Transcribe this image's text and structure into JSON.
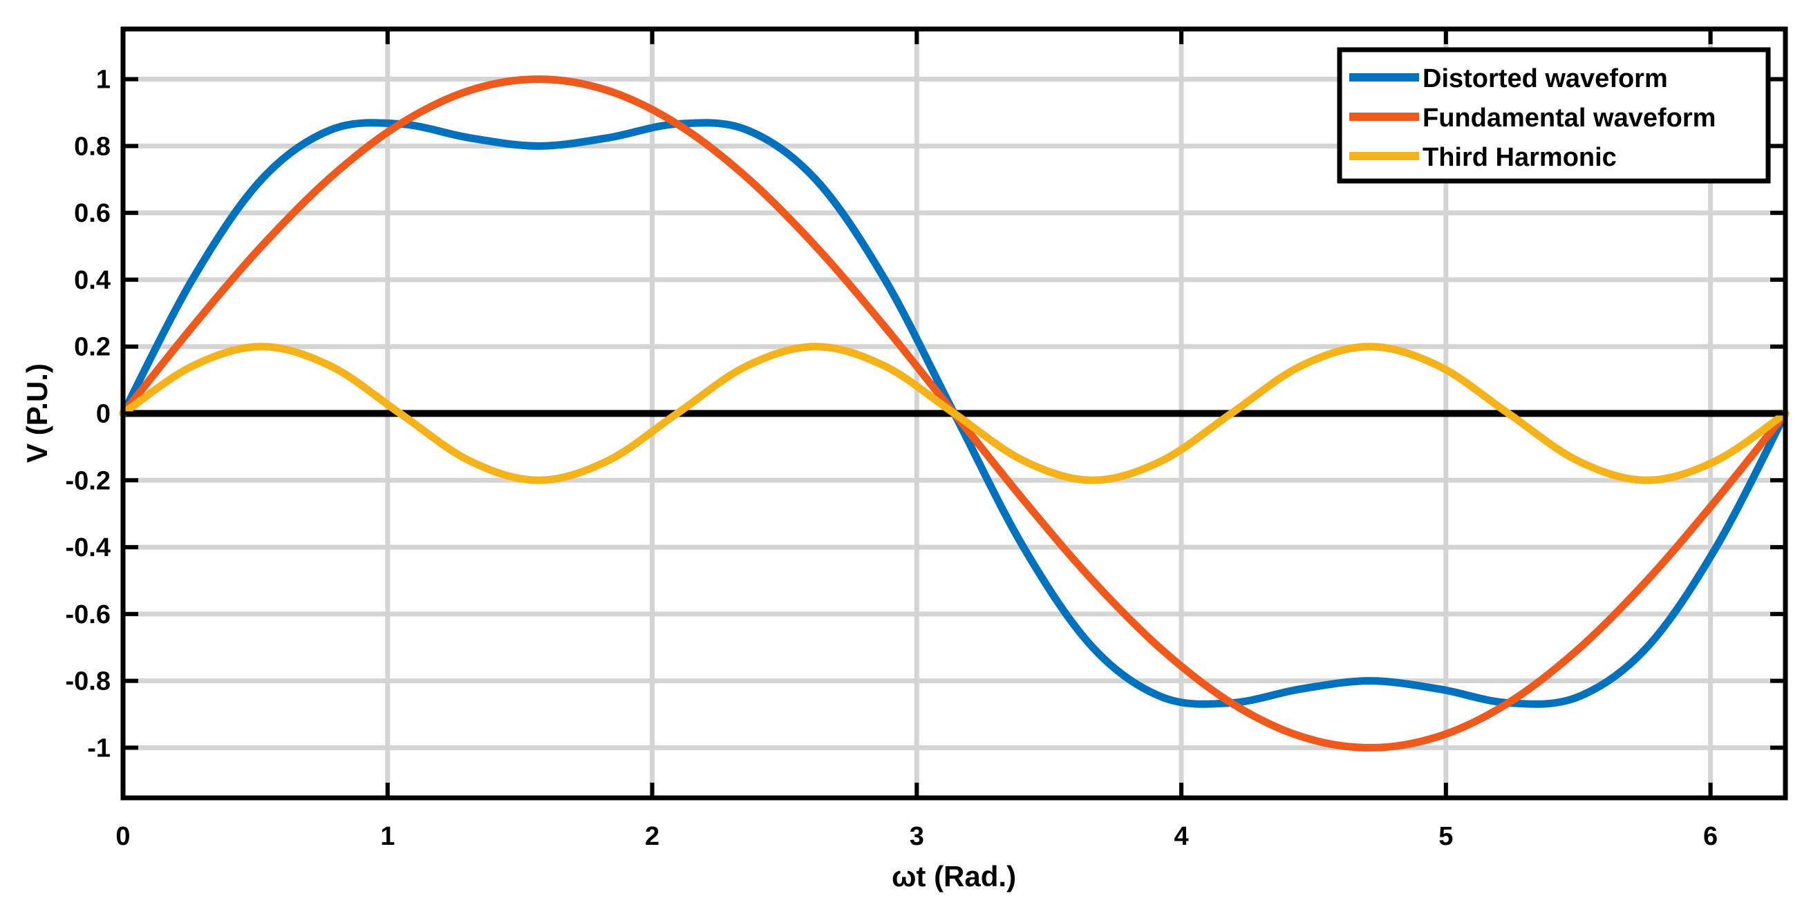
{
  "chart_data": {
    "type": "line",
    "title": "",
    "xlabel": "ωt (Rad.)",
    "ylabel": "V (P.U.)",
    "xlim": [
      0,
      6.2832
    ],
    "ylim": [
      -1.15,
      1.15
    ],
    "x_ticks": [
      0,
      1,
      2,
      3,
      4,
      5,
      6
    ],
    "x_tick_labels": [
      "0",
      "1",
      "2",
      "3",
      "4",
      "5",
      "6"
    ],
    "y_ticks": [
      1,
      0.8,
      0.6,
      0.4,
      0.2,
      0,
      -0.2,
      -0.4,
      -0.6,
      -0.8,
      -1
    ],
    "y_tick_labels": [
      "1",
      "0.8",
      "0.6",
      "0.4",
      "0.2",
      "0",
      "-0.2",
      "-0.4",
      "-0.6",
      "-0.8",
      "-1"
    ],
    "grid": true,
    "legend_position": "top-right",
    "x": [
      0,
      0.2618,
      0.5236,
      0.7854,
      1.0472,
      1.309,
      1.5708,
      1.8326,
      2.0944,
      2.3562,
      2.618,
      2.8798,
      3.1416,
      3.4034,
      3.6652,
      3.927,
      4.1888,
      4.4506,
      4.7124,
      4.9742,
      5.236,
      5.4978,
      5.7596,
      6.0214,
      6.2832
    ],
    "series": [
      {
        "name": "Distorted waveform",
        "color": "#0072BD",
        "values": [
          0,
          0.4002,
          0.7,
          0.8485,
          0.866,
          0.8245,
          0.8,
          0.8245,
          0.866,
          0.8485,
          0.7,
          0.4002,
          0,
          -0.4002,
          -0.7,
          -0.8485,
          -0.866,
          -0.8245,
          -0.8,
          -0.8245,
          -0.866,
          -0.8485,
          -0.7,
          -0.4002,
          0
        ]
      },
      {
        "name": "Fundamental waveform",
        "color": "#EE5A1E",
        "values": [
          0,
          0.2588,
          0.5,
          0.7071,
          0.866,
          0.9659,
          1,
          0.9659,
          0.866,
          0.7071,
          0.5,
          0.2588,
          0,
          -0.2588,
          -0.5,
          -0.7071,
          -0.866,
          -0.9659,
          -1,
          -0.9659,
          -0.866,
          -0.7071,
          -0.5,
          -0.2588,
          0
        ]
      },
      {
        "name": "Third Harmonic",
        "color": "#F4B21B",
        "values": [
          0,
          0.1414,
          0.2,
          0.1414,
          0,
          -0.1414,
          -0.2,
          -0.1414,
          0,
          0.1414,
          0.2,
          0.1414,
          0,
          -0.1414,
          -0.2,
          -0.1414,
          0,
          0.1414,
          0.2,
          0.1414,
          0,
          -0.1414,
          -0.2,
          -0.1414,
          0
        ]
      }
    ]
  }
}
